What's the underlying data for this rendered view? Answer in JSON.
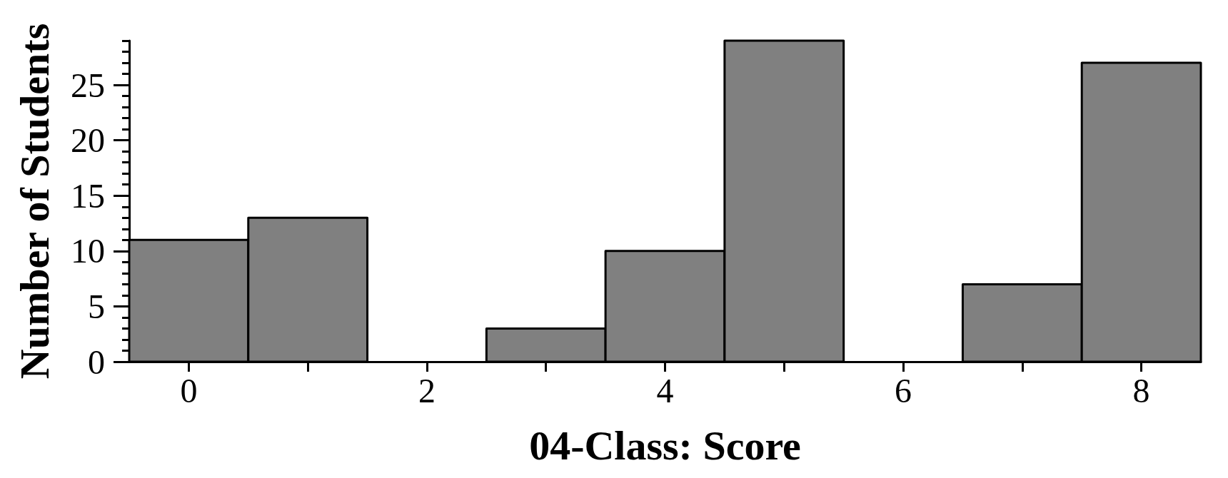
{
  "chart_data": {
    "type": "histogram",
    "xlabel": "04-Class: Score",
    "ylabel": "Number of Students",
    "bins": [
      -0.5,
      0.5,
      1.5,
      2.5,
      3.5,
      4.5,
      5.5,
      6.5,
      7.5,
      8.5
    ],
    "values": [
      11,
      13,
      0,
      3,
      10,
      29,
      0,
      7,
      27
    ],
    "color": "#808080",
    "xlim": [
      -0.5,
      8.5
    ],
    "ylim": [
      0,
      29
    ],
    "xticks": [
      0,
      {
        "value": 1,
        "label": null
      },
      2,
      {
        "value": 3,
        "label": null
      },
      4,
      {
        "value": 5,
        "label": null
      },
      6,
      {
        "value": 7,
        "label": null
      },
      8
    ],
    "yticks": [
      0,
      {
        "value": 1,
        "label": null
      },
      {
        "value": 2,
        "label": null
      },
      {
        "value": 3,
        "label": null
      },
      {
        "value": 4,
        "label": null
      },
      5,
      {
        "value": 6,
        "label": null
      },
      {
        "value": 7,
        "label": null
      },
      {
        "value": 8,
        "label": null
      },
      {
        "value": 9,
        "label": null
      },
      10,
      {
        "value": 11,
        "label": null
      },
      {
        "value": 12,
        "label": null
      },
      {
        "value": 13,
        "label": null
      },
      {
        "value": 14,
        "label": null
      },
      15,
      {
        "value": 16,
        "label": null
      },
      {
        "value": 17,
        "label": null
      },
      {
        "value": 18,
        "label": null
      },
      {
        "value": 19,
        "label": null
      },
      20,
      {
        "value": 21,
        "label": null
      },
      {
        "value": 22,
        "label": null
      },
      {
        "value": 23,
        "label": null
      },
      {
        "value": 24,
        "label": null
      },
      25,
      {
        "value": 26,
        "label": null
      },
      {
        "value": 27,
        "label": null
      },
      {
        "value": 28,
        "label": null
      },
      {
        "value": 29,
        "label": null
      }
    ]
  }
}
